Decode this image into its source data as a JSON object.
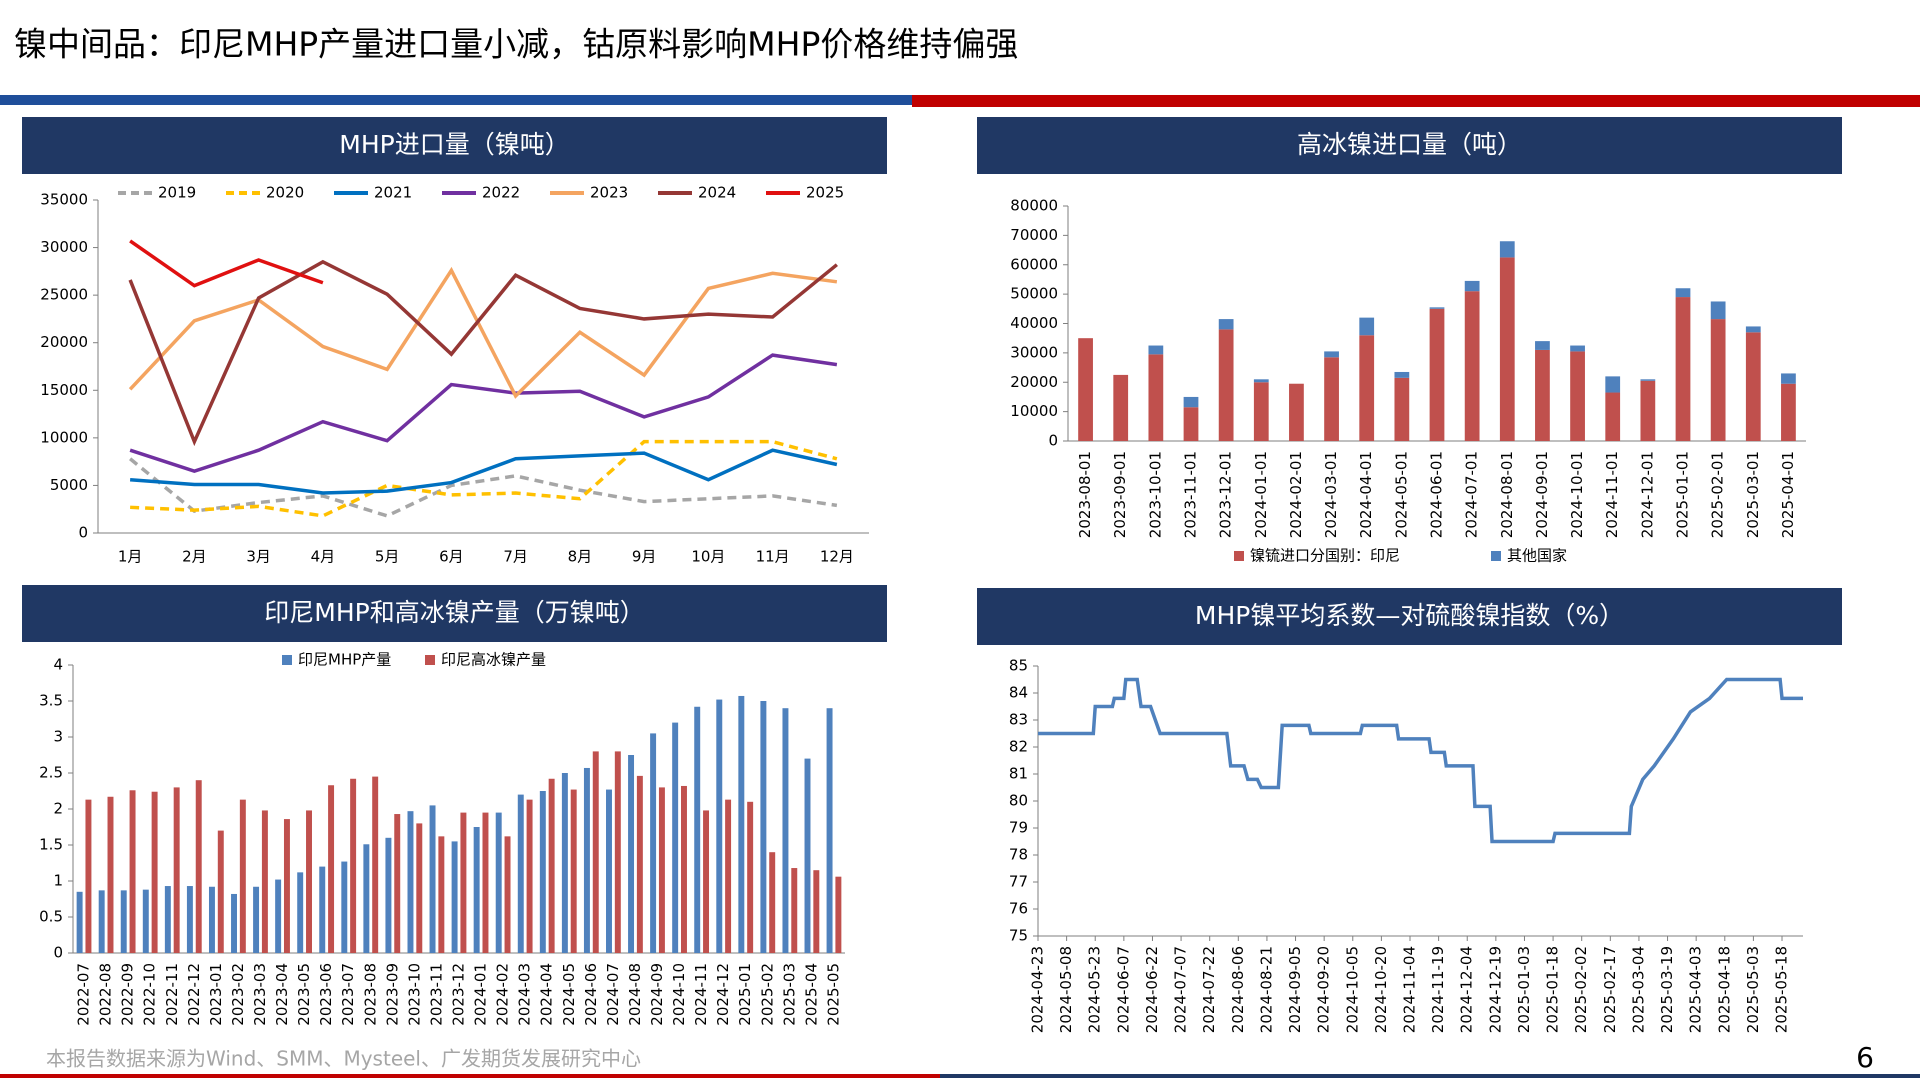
{
  "title": "镍中间品：印尼MHP产量进口量小减，钴原料影响MHP价格维持偏强",
  "source": "本报告数据来源为Wind、SMM、Mysteel、广发期货发展研究中心",
  "page_number": "6",
  "chart_data": [
    {
      "type": "line",
      "title": "MHP进口量（镍吨）",
      "legend": "top",
      "categories": [
        "1月",
        "2月",
        "3月",
        "4月",
        "5月",
        "6月",
        "7月",
        "8月",
        "9月",
        "10月",
        "11月",
        "12月"
      ],
      "ylim": [
        0,
        35000
      ],
      "yticks": [
        0,
        5000,
        10000,
        15000,
        20000,
        25000,
        30000,
        35000
      ],
      "series": [
        {
          "name": "2019",
          "color": "#a6a6a6",
          "dash": true,
          "values": [
            7800,
            2300,
            3200,
            3900,
            1800,
            5000,
            6000,
            4500,
            3300,
            3600,
            3900,
            2900
          ]
        },
        {
          "name": "2020",
          "color": "#ffc000",
          "dash": true,
          "values": [
            2700,
            2400,
            2800,
            1800,
            5000,
            4000,
            4200,
            3600,
            9600,
            9600,
            9600,
            7800
          ]
        },
        {
          "name": "2021",
          "color": "#0070c0",
          "values": [
            5600,
            5100,
            5100,
            4200,
            4400,
            5300,
            7800,
            8100,
            8400,
            5600,
            8700,
            7200
          ]
        },
        {
          "name": "2022",
          "color": "#7030a0",
          "values": [
            8700,
            6500,
            8700,
            11700,
            9700,
            15600,
            14700,
            14900,
            12200,
            14300,
            18700,
            17700
          ]
        },
        {
          "name": "2023",
          "color": "#f4a460",
          "values": [
            15100,
            22300,
            24500,
            19600,
            17200,
            27600,
            14400,
            21100,
            16600,
            25700,
            27300,
            26400
          ]
        },
        {
          "name": "2024",
          "color": "#953735",
          "values": [
            26600,
            9600,
            24700,
            28500,
            25100,
            18800,
            27100,
            23600,
            22500,
            23000,
            22700,
            28200
          ]
        },
        {
          "name": "2025",
          "color": "#e01010",
          "values": [
            30700,
            26000,
            28700,
            26300,
            null,
            null,
            null,
            null,
            null,
            null,
            null,
            null
          ]
        }
      ]
    },
    {
      "type": "bar",
      "stacked": true,
      "title": "高冰镍进口量（吨）",
      "legend": "bottom",
      "categories": [
        "2023-08-01",
        "2023-09-01",
        "2023-10-01",
        "2023-11-01",
        "2023-12-01",
        "2024-01-01",
        "2024-02-01",
        "2024-03-01",
        "2024-04-01",
        "2024-05-01",
        "2024-06-01",
        "2024-07-01",
        "2024-08-01",
        "2024-09-01",
        "2024-10-01",
        "2024-11-01",
        "2024-12-01",
        "2025-01-01",
        "2025-02-01",
        "2025-03-01",
        "2025-04-01"
      ],
      "ylim": [
        0,
        80000
      ],
      "yticks": [
        0,
        10000,
        20000,
        30000,
        40000,
        50000,
        60000,
        70000,
        80000
      ],
      "series": [
        {
          "name": "镍锍进口分国别：印尼",
          "color": "#c0504d",
          "values": [
            35000,
            22500,
            29500,
            11500,
            38000,
            20000,
            19500,
            28500,
            36000,
            21500,
            45000,
            51000,
            62500,
            31000,
            30500,
            16500,
            20500,
            49000,
            41500,
            37000,
            19500
          ]
        },
        {
          "name": "其他国家",
          "color": "#4f81bd",
          "values": [
            0,
            0,
            3000,
            3500,
            3500,
            1000,
            0,
            2000,
            6000,
            2000,
            500,
            3500,
            5500,
            3000,
            2000,
            5500,
            500,
            3000,
            6000,
            2000,
            3500
          ]
        }
      ]
    },
    {
      "type": "bar",
      "title": "印尼MHP和高冰镍产量（万镍吨）",
      "legend": "top",
      "categories": [
        "2022-07",
        "2022-08",
        "2022-09",
        "2022-10",
        "2022-11",
        "2022-12",
        "2023-01",
        "2023-02",
        "2023-03",
        "2023-04",
        "2023-05",
        "2023-06",
        "2023-07",
        "2023-08",
        "2023-09",
        "2023-10",
        "2023-11",
        "2023-12",
        "2024-01",
        "2024-02",
        "2024-03",
        "2024-04",
        "2024-05",
        "2024-06",
        "2024-07",
        "2024-08",
        "2024-09",
        "2024-10",
        "2024-11",
        "2024-12",
        "2025-01",
        "2025-02",
        "2025-03",
        "2025-04",
        "2025-05"
      ],
      "ylim": [
        0,
        4
      ],
      "yticks": [
        0,
        0.5,
        1,
        1.5,
        2,
        2.5,
        3,
        3.5,
        4
      ],
      "series": [
        {
          "name": "印尼MHP产量",
          "color": "#4f81bd",
          "values": [
            0.85,
            0.87,
            0.87,
            0.88,
            0.93,
            0.93,
            0.92,
            0.82,
            0.92,
            1.02,
            1.12,
            1.2,
            1.27,
            1.51,
            1.6,
            1.97,
            2.05,
            1.55,
            1.75,
            1.95,
            2.2,
            2.25,
            2.5,
            2.57,
            2.27,
            2.75,
            3.05,
            3.2,
            3.42,
            3.52,
            3.57,
            3.5,
            3.4,
            2.7,
            3.4
          ]
        },
        {
          "name": "印尼高冰镍产量",
          "color": "#c0504d",
          "values": [
            2.13,
            2.17,
            2.26,
            2.24,
            2.3,
            2.4,
            1.7,
            2.13,
            1.98,
            1.86,
            1.98,
            2.33,
            2.42,
            2.45,
            1.93,
            1.8,
            1.62,
            1.95,
            1.95,
            1.62,
            2.13,
            2.42,
            2.27,
            2.8,
            2.8,
            2.46,
            2.3,
            2.32,
            1.98,
            2.13,
            2.1,
            1.4,
            1.18,
            1.15,
            1.06
          ]
        }
      ]
    },
    {
      "type": "line",
      "title": "MHP镍平均系数—对硫酸镍指数（%）",
      "color": "#4f81bd",
      "xlim": [
        "2024-04-23",
        "2025-05-29"
      ],
      "xticks": [
        "2024-04-23",
        "2024-05-08",
        "2024-05-23",
        "2024-06-07",
        "2024-06-22",
        "2024-07-07",
        "2024-07-22",
        "2024-08-06",
        "2024-08-21",
        "2024-09-05",
        "2024-09-20",
        "2024-10-05",
        "2024-10-20",
        "2024-11-04",
        "2024-11-19",
        "2024-12-04",
        "2024-12-19",
        "2025-01-03",
        "2025-01-18",
        "2025-02-02",
        "2025-02-17",
        "2025-03-04",
        "2025-03-19",
        "2025-04-03",
        "2025-04-18",
        "2025-05-03",
        "2025-05-18"
      ],
      "ylim": [
        75,
        85
      ],
      "yticks": [
        75,
        76,
        77,
        78,
        79,
        80,
        81,
        82,
        83,
        84,
        85
      ],
      "x": [
        "2024-04-23",
        "2024-05-22",
        "2024-05-23",
        "2024-06-01",
        "2024-06-02",
        "2024-06-07",
        "2024-06-08",
        "2024-06-14",
        "2024-06-16",
        "2024-06-21",
        "2024-06-26",
        "2024-07-31",
        "2024-08-02",
        "2024-08-09",
        "2024-08-11",
        "2024-08-16",
        "2024-08-18",
        "2024-08-27",
        "2024-08-29",
        "2024-09-12",
        "2024-09-13",
        "2024-10-09",
        "2024-10-10",
        "2024-10-28",
        "2024-10-29",
        "2024-11-14",
        "2024-11-15",
        "2024-11-22",
        "2024-11-23",
        "2024-12-07",
        "2024-12-08",
        "2024-12-16",
        "2024-12-17",
        "2025-01-18",
        "2025-01-19",
        "2025-02-27",
        "2025-02-28",
        "2025-03-03",
        "2025-03-06",
        "2025-03-12",
        "2025-03-22",
        "2025-03-31",
        "2025-04-10",
        "2025-04-19",
        "2025-05-17",
        "2025-05-18",
        "2025-05-29"
      ],
      "values": [
        82.5,
        82.5,
        83.5,
        83.5,
        83.8,
        83.8,
        84.5,
        84.5,
        83.5,
        83.5,
        82.5,
        82.5,
        81.3,
        81.3,
        80.8,
        80.8,
        80.5,
        80.5,
        82.8,
        82.8,
        82.5,
        82.5,
        82.8,
        82.8,
        82.3,
        82.3,
        81.8,
        81.8,
        81.3,
        81.3,
        79.8,
        79.8,
        78.5,
        78.5,
        78.8,
        78.8,
        79.8,
        80.3,
        80.8,
        81.3,
        82.3,
        83.3,
        83.8,
        84.5,
        84.5,
        83.8,
        83.8
      ]
    }
  ]
}
